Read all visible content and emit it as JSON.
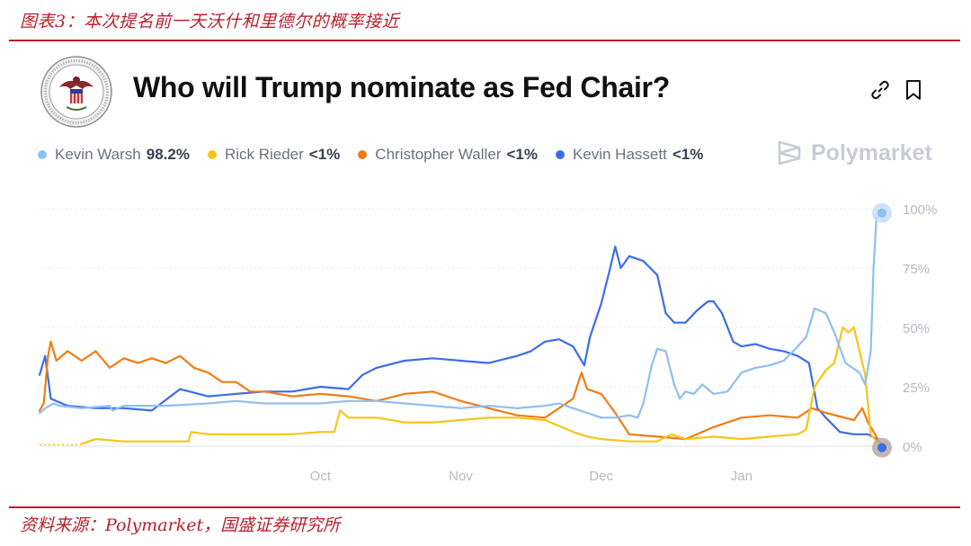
{
  "header": {
    "caption": "图表3：本次提名前一天沃什和里德尔的概率接近"
  },
  "footer": {
    "source": "资料来源：Polymarket，国盛证券研究所"
  },
  "card": {
    "title": "Who will Trump nominate as Fed Chair?",
    "brand": "Polymarket"
  },
  "icons": {
    "seal": "federal-reserve-seal-icon",
    "link": "link-icon",
    "bookmark": "bookmark-icon",
    "brand": "polymarket-logo-icon"
  },
  "colors": {
    "warsh": "#8fbff0",
    "rieder": "#f5c518",
    "waller": "#f07d14",
    "hassett": "#3c6de8",
    "grid": "#d7dbe0",
    "tick": "#b5bac2"
  },
  "chart_data": {
    "type": "line",
    "x_ticks": [
      "Oct",
      "Nov",
      "Dec",
      "Jan"
    ],
    "x_tick_positions": [
      10,
      15,
      20,
      25
    ],
    "x_range": [
      0,
      30
    ],
    "y_ticks": [
      "100%",
      "75%",
      "50%",
      "25%",
      "0%"
    ],
    "y_tick_values": [
      100,
      75,
      50,
      25,
      0
    ],
    "ylim": [
      0,
      100
    ],
    "grid": true,
    "legend_position": "top-left",
    "series": [
      {
        "name": "Kevin Warsh",
        "value_label": "98.2%",
        "color": "#8fbff0",
        "points": [
          [
            0,
            14
          ],
          [
            0.2,
            16
          ],
          [
            0.5,
            18
          ],
          [
            0.7,
            17
          ],
          [
            1.5,
            16
          ],
          [
            2.5,
            17
          ],
          [
            2.6,
            15
          ],
          [
            3,
            17
          ],
          [
            4.5,
            17
          ],
          [
            6,
            18
          ],
          [
            7,
            19
          ],
          [
            8,
            18
          ],
          [
            9,
            18
          ],
          [
            10,
            18
          ],
          [
            11,
            19
          ],
          [
            12,
            19
          ],
          [
            13,
            18
          ],
          [
            14,
            17
          ],
          [
            15,
            16
          ],
          [
            16,
            17
          ],
          [
            17,
            16
          ],
          [
            18,
            17
          ],
          [
            18.5,
            18
          ],
          [
            19,
            16
          ],
          [
            19.5,
            14
          ],
          [
            20,
            12
          ],
          [
            20.5,
            12
          ],
          [
            21,
            13
          ],
          [
            21.3,
            12
          ],
          [
            21.5,
            18
          ],
          [
            21.8,
            34
          ],
          [
            22,
            41
          ],
          [
            22.3,
            40
          ],
          [
            22.6,
            26
          ],
          [
            22.8,
            20
          ],
          [
            23,
            23
          ],
          [
            23.3,
            22
          ],
          [
            23.6,
            26
          ],
          [
            24,
            22
          ],
          [
            24.5,
            23
          ],
          [
            25,
            31
          ],
          [
            25.5,
            33
          ],
          [
            26,
            34
          ],
          [
            26.5,
            36
          ],
          [
            27,
            42
          ],
          [
            27.3,
            46
          ],
          [
            27.6,
            58
          ],
          [
            28,
            56
          ],
          [
            28.3,
            48
          ],
          [
            28.7,
            35
          ],
          [
            29.2,
            31
          ],
          [
            29.4,
            26
          ],
          [
            29.6,
            40
          ],
          [
            29.7,
            75
          ],
          [
            29.8,
            96
          ],
          [
            30,
            98.2
          ]
        ]
      },
      {
        "name": "Rick Rieder",
        "value_label": "<1%",
        "color": "#f5c518",
        "points": [
          [
            1.5,
            1
          ],
          [
            2,
            3
          ],
          [
            3,
            2
          ],
          [
            4,
            2
          ],
          [
            5.3,
            2
          ],
          [
            5.4,
            6
          ],
          [
            6,
            5
          ],
          [
            7,
            5
          ],
          [
            8,
            5
          ],
          [
            9,
            5
          ],
          [
            10,
            6
          ],
          [
            10.5,
            6
          ],
          [
            10.7,
            15
          ],
          [
            11,
            12
          ],
          [
            12,
            12
          ],
          [
            13,
            10
          ],
          [
            14,
            10
          ],
          [
            15,
            11
          ],
          [
            16,
            12
          ],
          [
            17,
            12
          ],
          [
            18,
            11
          ],
          [
            19,
            6
          ],
          [
            19.5,
            4
          ],
          [
            20,
            3
          ],
          [
            21,
            2
          ],
          [
            22,
            2
          ],
          [
            22.5,
            5
          ],
          [
            23,
            3
          ],
          [
            24,
            4
          ],
          [
            25,
            3
          ],
          [
            26,
            4
          ],
          [
            27,
            5
          ],
          [
            27.3,
            7
          ],
          [
            27.6,
            25
          ],
          [
            28,
            32
          ],
          [
            28.3,
            35
          ],
          [
            28.6,
            50
          ],
          [
            28.8,
            48
          ],
          [
            29,
            50
          ],
          [
            29.2,
            40
          ],
          [
            29.4,
            30
          ],
          [
            29.6,
            5
          ],
          [
            29.8,
            2
          ],
          [
            30,
            0.5
          ]
        ]
      },
      {
        "name": "Christopher Waller",
        "value_label": "<1%",
        "color": "#f07d14",
        "points": [
          [
            0,
            15
          ],
          [
            0.15,
            18
          ],
          [
            0.3,
            38
          ],
          [
            0.4,
            44
          ],
          [
            0.6,
            36
          ],
          [
            1,
            40
          ],
          [
            1.5,
            36
          ],
          [
            2,
            40
          ],
          [
            2.5,
            33
          ],
          [
            3,
            37
          ],
          [
            3.5,
            35
          ],
          [
            4,
            37
          ],
          [
            4.5,
            35
          ],
          [
            5,
            38
          ],
          [
            5.5,
            33
          ],
          [
            6,
            31
          ],
          [
            6.5,
            27
          ],
          [
            7,
            27
          ],
          [
            7.5,
            23
          ],
          [
            8,
            23
          ],
          [
            9,
            21
          ],
          [
            10,
            22
          ],
          [
            11,
            21
          ],
          [
            12,
            19
          ],
          [
            13,
            22
          ],
          [
            14,
            23
          ],
          [
            15,
            19
          ],
          [
            16,
            16
          ],
          [
            17,
            13
          ],
          [
            18,
            12
          ],
          [
            18.5,
            16
          ],
          [
            19,
            20
          ],
          [
            19.3,
            31
          ],
          [
            19.5,
            24
          ],
          [
            20,
            22
          ],
          [
            20.5,
            14
          ],
          [
            21,
            5
          ],
          [
            22,
            4
          ],
          [
            23,
            3
          ],
          [
            24,
            8
          ],
          [
            24.5,
            10
          ],
          [
            25,
            12
          ],
          [
            26,
            13
          ],
          [
            27,
            12
          ],
          [
            27.5,
            16
          ],
          [
            28,
            14
          ],
          [
            29,
            11
          ],
          [
            29.3,
            16
          ],
          [
            29.5,
            10
          ],
          [
            29.8,
            4
          ],
          [
            30,
            0.5
          ]
        ]
      },
      {
        "name": "Kevin Hassett",
        "value_label": "<1%",
        "color": "#3c6de8",
        "points": [
          [
            0,
            30
          ],
          [
            0.2,
            38
          ],
          [
            0.4,
            20
          ],
          [
            1,
            17
          ],
          [
            2,
            16
          ],
          [
            3,
            16
          ],
          [
            4,
            15
          ],
          [
            5,
            24
          ],
          [
            6,
            21
          ],
          [
            7,
            22
          ],
          [
            8,
            23
          ],
          [
            9,
            23
          ],
          [
            10,
            25
          ],
          [
            11,
            24
          ],
          [
            11.5,
            30
          ],
          [
            12,
            33
          ],
          [
            13,
            36
          ],
          [
            14,
            37
          ],
          [
            15,
            36
          ],
          [
            16,
            35
          ],
          [
            17,
            38
          ],
          [
            17.5,
            40
          ],
          [
            18,
            44
          ],
          [
            18.5,
            45
          ],
          [
            19,
            42
          ],
          [
            19.4,
            34
          ],
          [
            19.6,
            46
          ],
          [
            20,
            60
          ],
          [
            20.3,
            74
          ],
          [
            20.5,
            84
          ],
          [
            20.7,
            75
          ],
          [
            21,
            80
          ],
          [
            21.5,
            78
          ],
          [
            22,
            72
          ],
          [
            22.3,
            56
          ],
          [
            22.6,
            52
          ],
          [
            23,
            52
          ],
          [
            23.4,
            57
          ],
          [
            23.8,
            61
          ],
          [
            24,
            61
          ],
          [
            24.3,
            56
          ],
          [
            24.7,
            44
          ],
          [
            25,
            42
          ],
          [
            25.5,
            43
          ],
          [
            26,
            41
          ],
          [
            26.5,
            40
          ],
          [
            27,
            38
          ],
          [
            27.4,
            35
          ],
          [
            27.7,
            16
          ],
          [
            28,
            12
          ],
          [
            28.5,
            6
          ],
          [
            29,
            5
          ],
          [
            29.5,
            5
          ],
          [
            29.8,
            3
          ],
          [
            30,
            0.5
          ]
        ]
      }
    ]
  }
}
